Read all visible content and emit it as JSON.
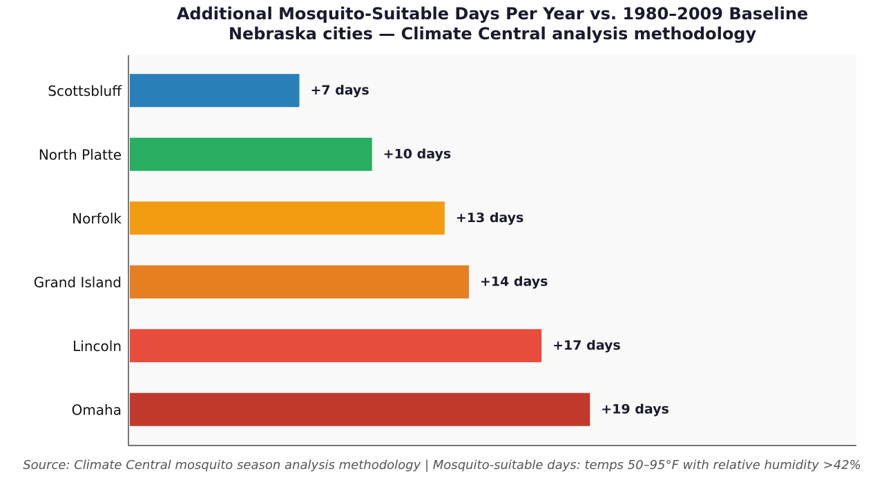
{
  "chart_data": {
    "type": "barh",
    "title": "Additional Mosquito-Suitable Days Per Year vs. 1980–2009 Baseline",
    "subtitle": "Nebraska cities — Climate Central analysis methodology",
    "categories": [
      "Scottsbluff",
      "North Platte",
      "Norfolk",
      "Grand Island",
      "Lincoln",
      "Omaha"
    ],
    "values": [
      7,
      10,
      13,
      14,
      17,
      19
    ],
    "value_labels": [
      "+7 days",
      "+10 days",
      "+13 days",
      "+14 days",
      "+17 days",
      "+19 days"
    ],
    "colors": [
      "#2980b9",
      "#27ae60",
      "#f39c12",
      "#e67e22",
      "#e74c3c",
      "#c0392b"
    ],
    "xlim": [
      0,
      30
    ],
    "source": "Source: Climate Central mosquito season analysis methodology  |  Mosquito-suitable days: temps 50–95°F with relative humidity >42%"
  }
}
